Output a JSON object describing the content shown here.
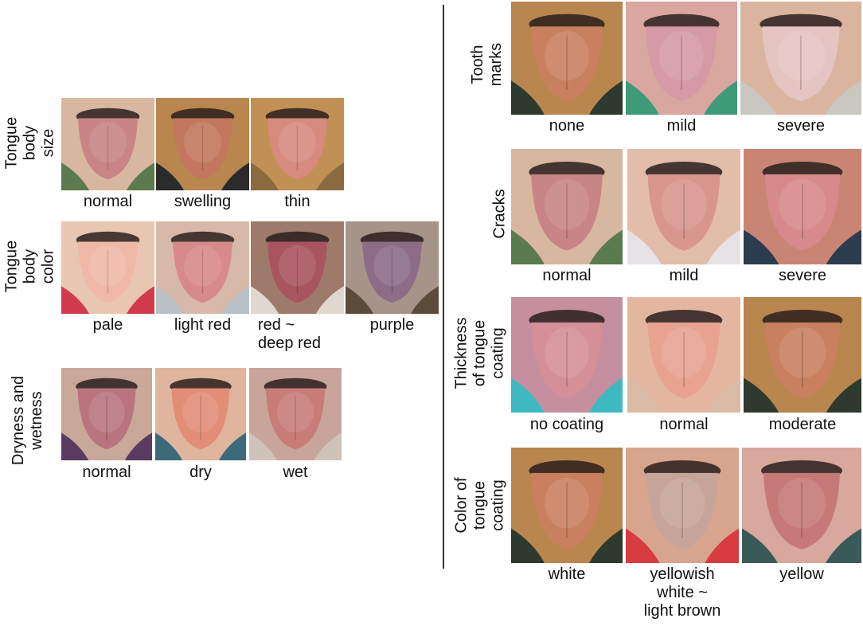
{
  "left_panel": {
    "body_size": {
      "label": [
        "Tongue",
        "body",
        "size"
      ],
      "items": [
        {
          "caption": "normal",
          "tongue": "#c98585",
          "skin": "#d8b7a0",
          "bg": "#5b7a4e"
        },
        {
          "caption": "swelling",
          "tongue": "#c3775e",
          "skin": "#b8864e",
          "bg": "#2b2b2b"
        },
        {
          "caption": "thin",
          "tongue": "#d78b7e",
          "skin": "#c09055",
          "bg": "#8a6a3e"
        }
      ]
    },
    "body_color": {
      "label": [
        "Tongue",
        "body",
        "color"
      ],
      "items": [
        {
          "caption": "pale",
          "tongue": "#f0b8a6",
          "skin": "#e9c6b1",
          "bg": "#d23a4d"
        },
        {
          "caption": "light red",
          "tongue": "#d88a8a",
          "skin": "#d7b9a9",
          "bg": "#b9c1c6"
        },
        {
          "caption": "red ~\ndeep red",
          "tongue": "#a9555f",
          "skin": "#9d7a69",
          "bg": "#e0d8cf"
        },
        {
          "caption": "purple",
          "tongue": "#8c6c87",
          "skin": "#a69489",
          "bg": "#5a4b3a"
        }
      ]
    },
    "dryness": {
      "label": [
        "Dryness and",
        "wetness"
      ],
      "items": [
        {
          "caption": "normal",
          "tongue": "#b9747e",
          "skin": "#c9a89a",
          "bg": "#5b3b62"
        },
        {
          "caption": "dry",
          "tongue": "#e28d78",
          "skin": "#dfb59d",
          "bg": "#3d6a7a"
        },
        {
          "caption": "wet",
          "tongue": "#c77c78",
          "skin": "#c9a49b",
          "bg": "#cfc2b8"
        }
      ]
    }
  },
  "right_panel": {
    "tooth_marks": {
      "label": [
        "Tooth",
        "marks"
      ],
      "items": [
        {
          "caption": "none",
          "tongue": "#c9805e",
          "skin": "#b8864e",
          "bg": "#2d3a2d"
        },
        {
          "caption": "mild",
          "tongue": "#d59aa5",
          "skin": "#d9a6a0",
          "bg": "#3f9a7a"
        },
        {
          "caption": "severe",
          "tongue": "#e5c5c1",
          "skin": "#dbb4a0",
          "bg": "#c9c7bf"
        }
      ]
    },
    "cracks": {
      "label": [
        "Cracks"
      ],
      "items": [
        {
          "caption": "normal",
          "tongue": "#c98585",
          "skin": "#d8b7a0",
          "bg": "#5b7a4e"
        },
        {
          "caption": "mild",
          "tongue": "#d8968e",
          "skin": "#e2bdaa",
          "bg": "#e7e2e6"
        },
        {
          "caption": "severe",
          "tongue": "#d7898b",
          "skin": "#c98573",
          "bg": "#2c3c4f"
        }
      ]
    },
    "thickness": {
      "label": [
        "Thickness",
        "of tongue",
        "coating"
      ],
      "items": [
        {
          "caption": "no coating",
          "tongue": "#d58f97",
          "skin": "#c58fa0",
          "bg": "#3fb9c0"
        },
        {
          "caption": "normal",
          "tongue": "#e7a290",
          "skin": "#e3b6a0",
          "bg": "#d9bba6"
        },
        {
          "caption": "moderate",
          "tongue": "#c9805e",
          "skin": "#b8864e",
          "bg": "#2d3a2d"
        }
      ]
    },
    "coating_color": {
      "label": [
        "Color of",
        "tongue",
        "coating"
      ],
      "items": [
        {
          "caption": "white",
          "tongue": "#c9805e",
          "skin": "#b8864e",
          "bg": "#2d3a2d"
        },
        {
          "caption": "yellowish\nwhite ~\nlight brown",
          "tongue": "#c7a49a",
          "skin": "#d7a58e",
          "bg": "#d93b42"
        },
        {
          "caption": "yellow",
          "tongue": "#c57a78",
          "skin": "#d7a89b",
          "bg": "#3a5a5a"
        }
      ]
    }
  }
}
